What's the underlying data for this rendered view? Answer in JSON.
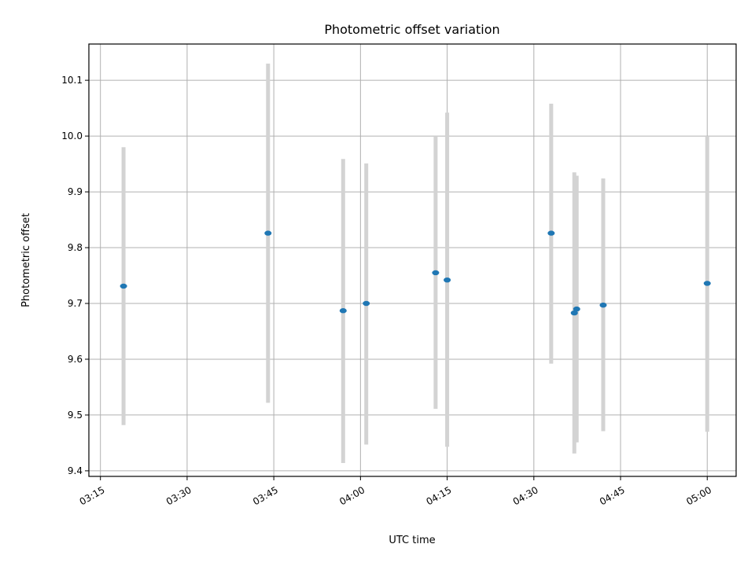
{
  "chart_data": {
    "type": "scatter",
    "title": "Photometric offset variation",
    "xlabel": "UTC time",
    "ylabel": "Photometric offset",
    "x_axis_type": "time",
    "xlim": [
      "03:13",
      "05:05"
    ],
    "ylim": [
      9.39,
      10.165
    ],
    "grid": true,
    "x_ticks": [
      "03:15",
      "03:30",
      "03:45",
      "04:00",
      "04:15",
      "04:30",
      "04:45",
      "05:00"
    ],
    "y_ticks": [
      9.4,
      9.5,
      9.6,
      9.7,
      9.8,
      9.9,
      10.0,
      10.1
    ],
    "point_color": "#1f77b4",
    "errorbar_color": "#d3d3d3",
    "series": [
      {
        "points": [
          {
            "x": "03:19",
            "y": 9.731,
            "ylow": 9.482,
            "yhigh": 9.98
          },
          {
            "x": "03:44",
            "y": 9.826,
            "ylow": 9.522,
            "yhigh": 10.13
          },
          {
            "x": "03:57",
            "y": 9.687,
            "ylow": 9.414,
            "yhigh": 9.959
          },
          {
            "x": "04:01",
            "y": 9.7,
            "ylow": 9.447,
            "yhigh": 9.951
          },
          {
            "x": "04:13",
            "y": 9.755,
            "ylow": 9.511,
            "yhigh": 10.0
          },
          {
            "x": "04:15",
            "y": 9.742,
            "ylow": 9.443,
            "yhigh": 10.042
          },
          {
            "x": "04:33",
            "y": 9.826,
            "ylow": 9.592,
            "yhigh": 10.058
          },
          {
            "x": "04:37",
            "y": 9.683,
            "ylow": 9.431,
            "yhigh": 9.935
          },
          {
            "x": "04:37",
            "y": 9.69,
            "ylow": 9.451,
            "yhigh": 9.929
          },
          {
            "x": "04:42",
            "y": 9.697,
            "ylow": 9.471,
            "yhigh": 9.924
          },
          {
            "x": "05:00",
            "y": 9.736,
            "ylow": 9.47,
            "yhigh": 10.0
          }
        ]
      }
    ]
  }
}
